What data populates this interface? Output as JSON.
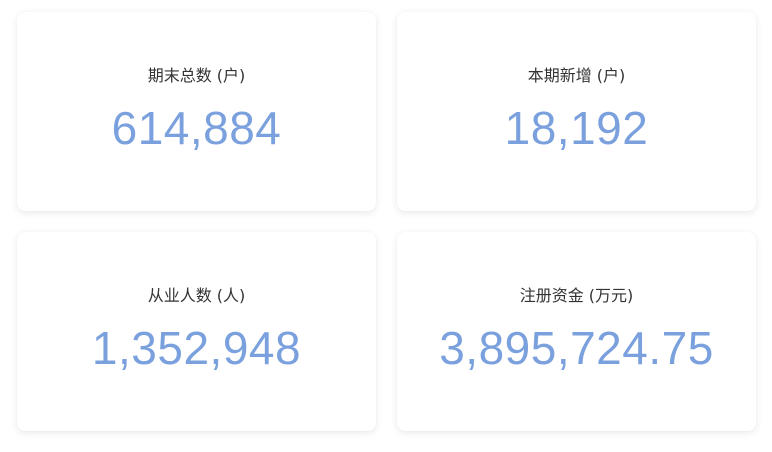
{
  "colors": {
    "value": "#7aa1dd",
    "label": "#333333",
    "card_background": "#ffffff"
  },
  "cards": [
    {
      "label": "期末总数 (户)",
      "value": "614,884"
    },
    {
      "label": "本期新增 (户)",
      "value": "18,192"
    },
    {
      "label": "从业人数 (人)",
      "value": "1,352,948"
    },
    {
      "label": "注册资金 (万元)",
      "value": "3,895,724.75"
    }
  ]
}
